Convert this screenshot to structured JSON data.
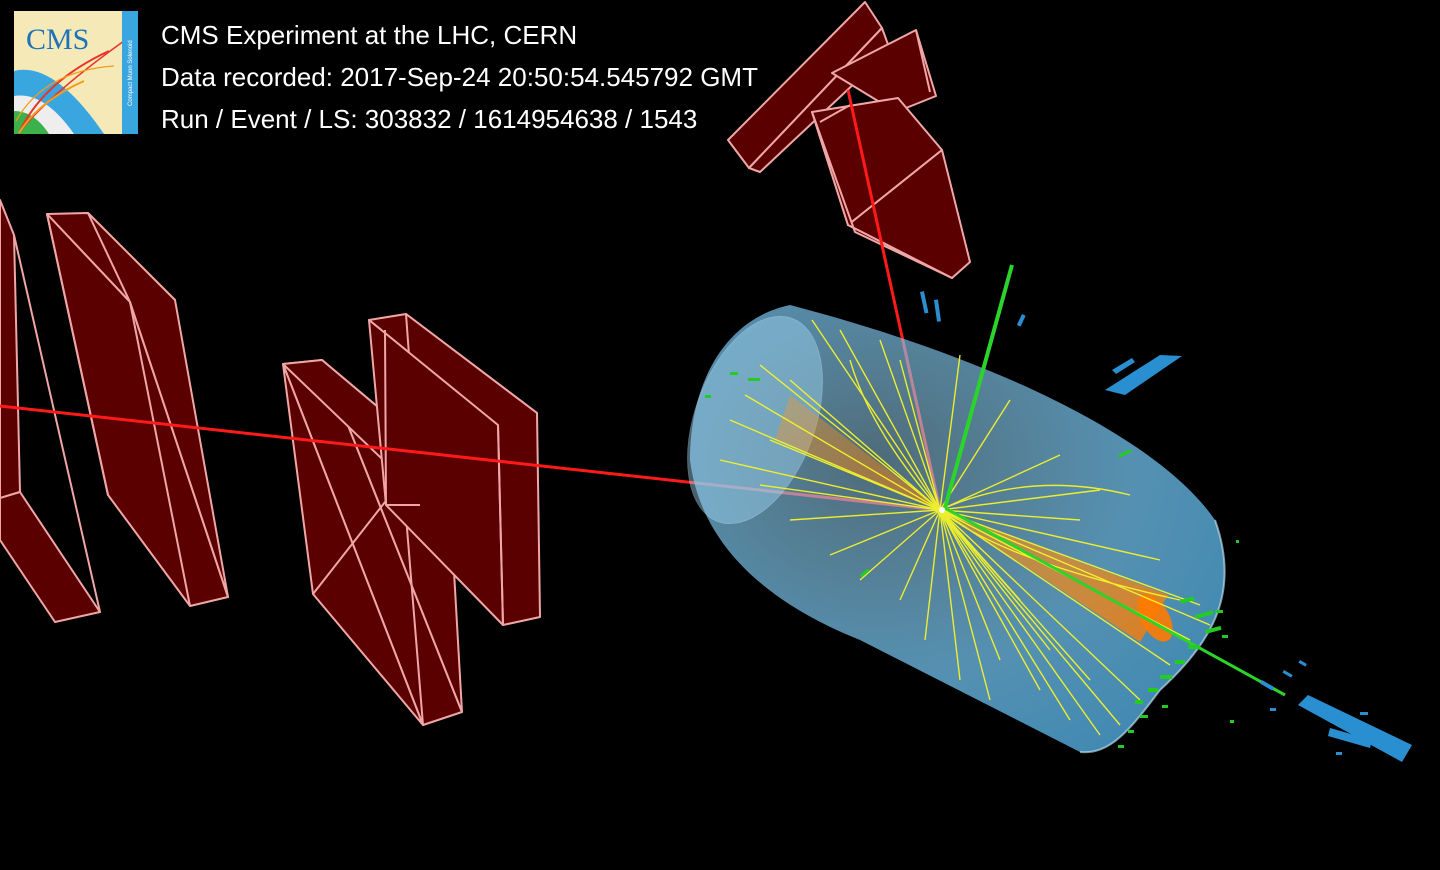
{
  "header": {
    "experiment": "CMS Experiment at the LHC, CERN",
    "recorded_label": "Data recorded:",
    "recorded_value": "2017-Sep-24 20:50:54.545792 GMT",
    "run_label": "Run / Event / LS:",
    "run_value": "303832 / 1614954638 / 1543"
  },
  "logo": {
    "text": "CMS",
    "subtext": "Compact Muon Solenoid"
  },
  "colors": {
    "background": "#000000",
    "muon_chamber_fill": "#5a0000",
    "muon_chamber_edge": "#f2a0a0",
    "muon_track": "#ff1a1a",
    "tracker_barrel": "#7ecbf0",
    "tracks": "#f4f42a",
    "jet_cone": "#ff8c00",
    "ecal_deposits": "#22cc22",
    "hcal_deposits": "#2a8fd0"
  }
}
